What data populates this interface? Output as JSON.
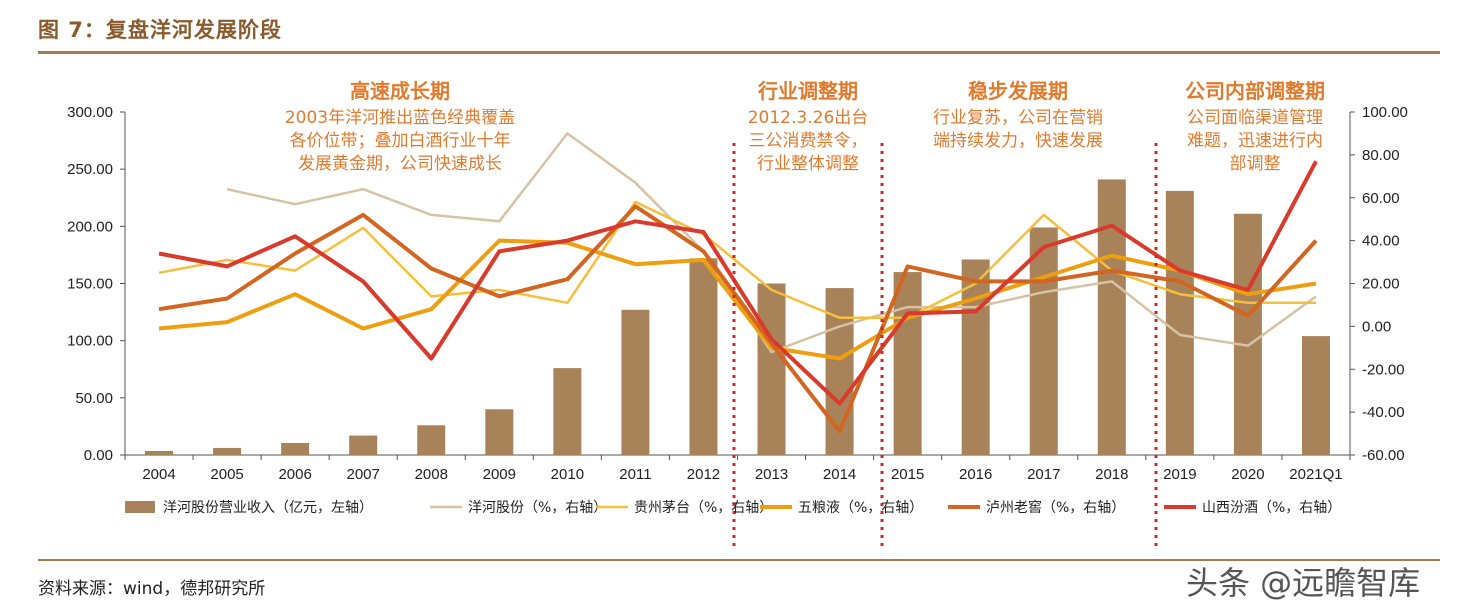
{
  "figure_title": "图 7：复盘洋河发展阶段",
  "source": "资料来源：wind，德邦研究所",
  "watermark": "头条 @远瞻智库",
  "colors": {
    "bar": "#a8835a",
    "yanghe": "#d6c3a4",
    "moutai": "#f5bf3c",
    "wuliangye": "#ee9f10",
    "luzhou": "#d2651f",
    "fenjiu": "#d93a2b",
    "phase_text": "#e07b2e",
    "divider": "#e0201c"
  },
  "phases": [
    {
      "title": "高速成长期",
      "desc": [
        "2003年洋河推出蓝色经典覆盖",
        "各价位带；叠加白酒行业十年",
        "发展黄金期，公司快速成长"
      ]
    },
    {
      "title": "行业调整期",
      "desc": [
        "2012.3.26出台",
        "三公消费禁令，",
        "行业整体调整"
      ]
    },
    {
      "title": "稳步发展期",
      "desc": [
        "行业复苏，公司在营销",
        "端持续发力，快速发展"
      ]
    },
    {
      "title": "公司内部调整期",
      "desc": [
        "公司面临渠道管理",
        "难题，迅速进行内",
        "部调整"
      ]
    }
  ],
  "chart_data": {
    "type": "bar",
    "categories": [
      "2004",
      "2005",
      "2006",
      "2007",
      "2008",
      "2009",
      "2010",
      "2011",
      "2012",
      "2013",
      "2014",
      "2015",
      "2016",
      "2017",
      "2018",
      "2019",
      "2020",
      "2021Q1"
    ],
    "y_left": {
      "ylim": [
        0,
        300
      ],
      "ticks": [
        "0.00",
        "50.00",
        "100.00",
        "150.00",
        "200.00",
        "250.00",
        "300.00"
      ]
    },
    "y_right": {
      "ylim": [
        -60,
        100
      ],
      "ticks": [
        "-60.00",
        "-40.00",
        "-20.00",
        "0.00",
        "20.00",
        "40.00",
        "60.00",
        "80.00",
        "100.00"
      ]
    },
    "bar_series": {
      "name": "洋河股份营业收入（亿元，左轴）",
      "axis": "left",
      "values": [
        3.5,
        6.2,
        10.5,
        17,
        26,
        40,
        76,
        127,
        172,
        150,
        146,
        160,
        171,
        199,
        241,
        231,
        211,
        104
      ]
    },
    "line_series": [
      {
        "name": "洋河股份（%，右轴）",
        "color_key": "yanghe",
        "width": 2.5,
        "values": [
          null,
          64,
          57,
          64,
          52,
          49,
          90,
          67,
          35,
          -12,
          0,
          9,
          9,
          16,
          21,
          -4,
          -9,
          14
        ]
      },
      {
        "name": "贵州茅台（%，右轴）",
        "color_key": "moutai",
        "width": 2.5,
        "values": [
          25,
          31,
          26,
          46,
          14,
          17,
          11,
          58,
          43,
          17,
          4,
          4,
          20,
          52,
          26,
          15,
          11,
          11
        ]
      },
      {
        "name": "五粮液（%，右轴）",
        "color_key": "wuliangye",
        "width": 4,
        "values": [
          -1,
          2,
          15,
          -1,
          8,
          40,
          39,
          29,
          31,
          -10,
          -15,
          4,
          13,
          23,
          33,
          26,
          15,
          20
        ]
      },
      {
        "name": "泸州老窖（%，右轴）",
        "color_key": "luzhou",
        "width": 4,
        "values": [
          8,
          13,
          34,
          52,
          27,
          14,
          22,
          56,
          35,
          -8,
          -49,
          28,
          21,
          21,
          26,
          21,
          5,
          40
        ]
      },
      {
        "name": "山西汾酒（%，右轴）",
        "color_key": "fenjiu",
        "width": 4,
        "values": [
          34,
          28,
          42,
          21,
          -15,
          35,
          40,
          49,
          44,
          -6,
          -36,
          6,
          7,
          37,
          47,
          26,
          17,
          77
        ]
      }
    ]
  }
}
